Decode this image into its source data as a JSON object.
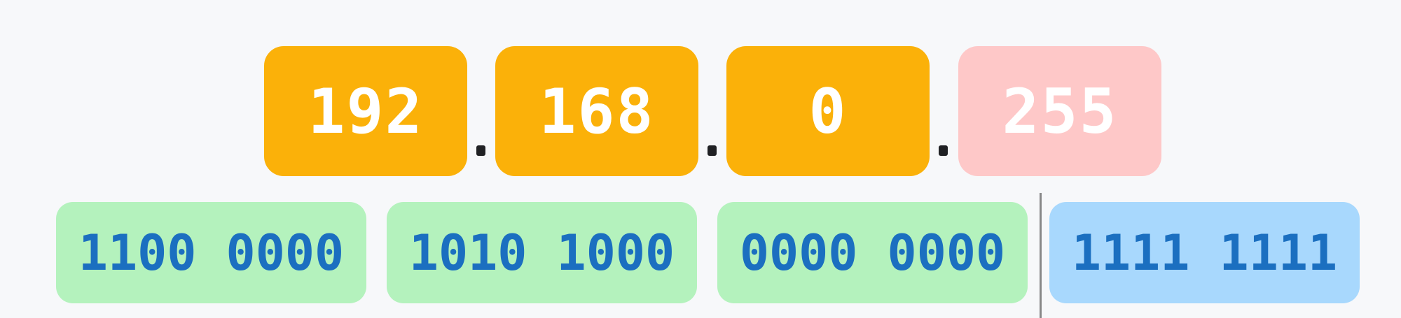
{
  "octets": [
    {
      "decimal": "192",
      "binary": "1100 0000"
    },
    {
      "decimal": "168",
      "binary": "1010 1000"
    },
    {
      "decimal": "0",
      "binary": "0000 0000"
    },
    {
      "decimal": "255",
      "binary": "1111 1111"
    }
  ],
  "colors": {
    "network_octet": "#fbb109",
    "host_octet": "#fec8c8",
    "network_binary": "#b4f2bd",
    "host_binary": "#a8d8fd",
    "binary_text": "#1b6fc0"
  }
}
